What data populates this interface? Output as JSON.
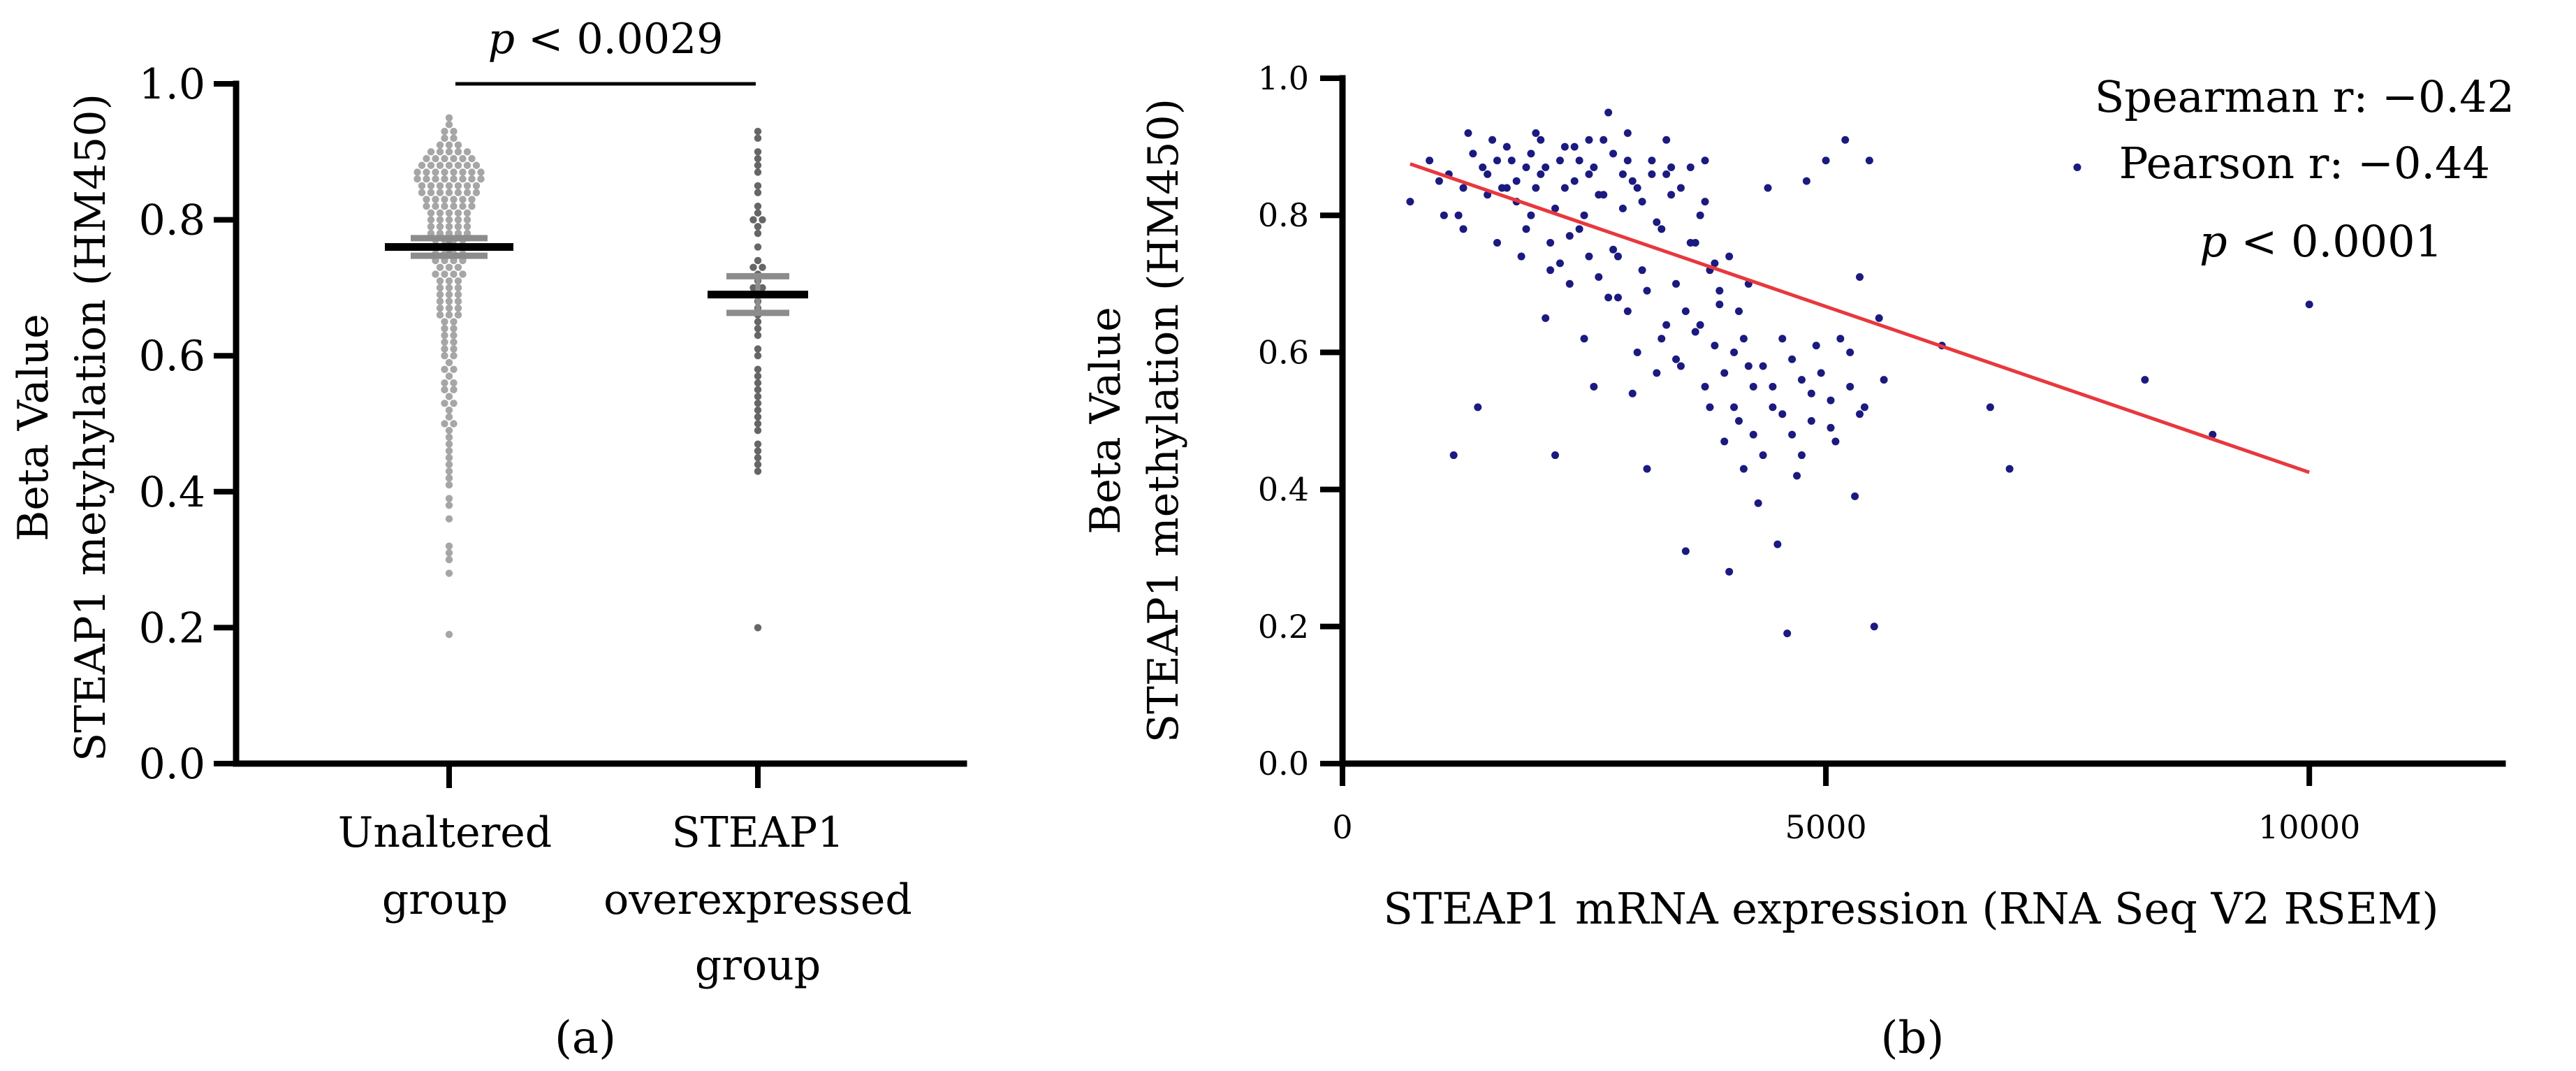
{
  "chart_data": [
    {
      "type": "scatter",
      "panel_label": "(a)",
      "title": "",
      "ylabel_line1": "Beta Value",
      "ylabel_line2": "STEAP1 metyhylation (HM450)",
      "ylim": [
        0,
        1.0
      ],
      "yticks": [
        "0.0",
        "0.2",
        "0.4",
        "0.6",
        "0.8",
        "1.0"
      ],
      "categories": [
        {
          "label_lines": [
            "Unaltered",
            "group"
          ]
        },
        {
          "label_lines": [
            "STEAP1",
            "overexpressed",
            "group"
          ]
        }
      ],
      "significance": {
        "p_symbol": "p",
        "text": " < 0.0029"
      },
      "series": [
        {
          "name": "Unaltered group",
          "color": "#a6a6a6",
          "mean": 0.76,
          "sem_low": 0.747,
          "sem_high": 0.773,
          "values": [
            0.95,
            0.94,
            0.93,
            0.93,
            0.92,
            0.92,
            0.91,
            0.91,
            0.91,
            0.9,
            0.9,
            0.9,
            0.9,
            0.9,
            0.89,
            0.89,
            0.89,
            0.89,
            0.89,
            0.89,
            0.88,
            0.88,
            0.88,
            0.88,
            0.88,
            0.88,
            0.88,
            0.87,
            0.87,
            0.87,
            0.87,
            0.87,
            0.87,
            0.87,
            0.87,
            0.86,
            0.86,
            0.86,
            0.86,
            0.86,
            0.86,
            0.86,
            0.86,
            0.85,
            0.85,
            0.85,
            0.85,
            0.85,
            0.85,
            0.85,
            0.84,
            0.84,
            0.84,
            0.84,
            0.84,
            0.84,
            0.84,
            0.83,
            0.83,
            0.83,
            0.83,
            0.83,
            0.83,
            0.82,
            0.82,
            0.82,
            0.82,
            0.82,
            0.82,
            0.81,
            0.81,
            0.81,
            0.81,
            0.81,
            0.8,
            0.8,
            0.8,
            0.8,
            0.8,
            0.79,
            0.79,
            0.79,
            0.79,
            0.79,
            0.78,
            0.78,
            0.78,
            0.78,
            0.78,
            0.77,
            0.77,
            0.77,
            0.77,
            0.76,
            0.76,
            0.76,
            0.76,
            0.75,
            0.75,
            0.75,
            0.75,
            0.74,
            0.74,
            0.74,
            0.74,
            0.73,
            0.73,
            0.73,
            0.72,
            0.72,
            0.72,
            0.72,
            0.71,
            0.71,
            0.71,
            0.7,
            0.7,
            0.7,
            0.69,
            0.69,
            0.69,
            0.68,
            0.68,
            0.68,
            0.67,
            0.67,
            0.67,
            0.66,
            0.66,
            0.66,
            0.65,
            0.65,
            0.64,
            0.64,
            0.63,
            0.63,
            0.62,
            0.62,
            0.61,
            0.61,
            0.6,
            0.6,
            0.59,
            0.58,
            0.58,
            0.57,
            0.56,
            0.56,
            0.55,
            0.55,
            0.54,
            0.53,
            0.53,
            0.52,
            0.51,
            0.5,
            0.5,
            0.49,
            0.48,
            0.47,
            0.46,
            0.45,
            0.44,
            0.43,
            0.42,
            0.41,
            0.39,
            0.38,
            0.36,
            0.32,
            0.31,
            0.3,
            0.28,
            0.19
          ]
        },
        {
          "name": "STEAP1 overexpressed group",
          "color": "#666666",
          "mean": 0.69,
          "sem_low": 0.663,
          "sem_high": 0.717,
          "values": [
            0.93,
            0.92,
            0.9,
            0.89,
            0.88,
            0.87,
            0.85,
            0.84,
            0.82,
            0.81,
            0.8,
            0.8,
            0.79,
            0.78,
            0.76,
            0.74,
            0.73,
            0.73,
            0.72,
            0.71,
            0.7,
            0.7,
            0.69,
            0.68,
            0.67,
            0.66,
            0.65,
            0.64,
            0.63,
            0.61,
            0.6,
            0.58,
            0.57,
            0.56,
            0.55,
            0.54,
            0.53,
            0.52,
            0.51,
            0.5,
            0.49,
            0.47,
            0.46,
            0.45,
            0.44,
            0.43,
            0.2
          ]
        }
      ]
    },
    {
      "type": "scatter",
      "panel_label": "(b)",
      "title": "",
      "ylabel_line1": "Beta Value",
      "ylabel_line2": "STEAP1 methylation (HM450)",
      "xlabel": "STEAP1 mRNA expression (RNA Seq V2 RSEM)",
      "xlim": [
        0,
        12000
      ],
      "ylim": [
        0,
        1.0
      ],
      "xticks": [
        "0",
        "5000",
        "10000"
      ],
      "yticks": [
        "0.0",
        "0.2",
        "0.4",
        "0.6",
        "0.8",
        "1.0"
      ],
      "point_color": "#1a1a80",
      "fit_line": {
        "color": "#e8383d",
        "x": [
          700,
          10000
        ],
        "y": [
          0.875,
          0.425
        ]
      },
      "annotations": [
        {
          "text": "Spearman r: −0.42"
        },
        {
          "text": "Pearson r: −0.44"
        },
        {
          "p_symbol": "p",
          "text": " < 0.0001"
        }
      ],
      "points": [
        [
          700,
          0.82
        ],
        [
          1000,
          0.85
        ],
        [
          1050,
          0.8
        ],
        [
          1100,
          0.86
        ],
        [
          1150,
          0.45
        ],
        [
          1200,
          0.8
        ],
        [
          1250,
          0.78
        ],
        [
          1300,
          0.92
        ],
        [
          1350,
          0.89
        ],
        [
          1400,
          0.52
        ],
        [
          1450,
          0.87
        ],
        [
          1500,
          0.83
        ],
        [
          1550,
          0.91
        ],
        [
          1600,
          0.76
        ],
        [
          1650,
          0.84
        ],
        [
          1700,
          0.9
        ],
        [
          1750,
          0.88
        ],
        [
          1800,
          0.85
        ],
        [
          1850,
          0.74
        ],
        [
          1900,
          0.87
        ],
        [
          1950,
          0.8
        ],
        [
          2000,
          0.92
        ],
        [
          2050,
          0.86
        ],
        [
          2100,
          0.65
        ],
        [
          2150,
          0.72
        ],
        [
          2200,
          0.45
        ],
        [
          2250,
          0.88
        ],
        [
          2300,
          0.84
        ],
        [
          2350,
          0.7
        ],
        [
          2400,
          0.9
        ],
        [
          2450,
          0.78
        ],
        [
          2500,
          0.62
        ],
        [
          2550,
          0.86
        ],
        [
          2600,
          0.55
        ],
        [
          2650,
          0.83
        ],
        [
          2700,
          0.91
        ],
        [
          2750,
          0.95
        ],
        [
          2800,
          0.75
        ],
        [
          2850,
          0.68
        ],
        [
          2900,
          0.81
        ],
        [
          2950,
          0.88
        ],
        [
          3000,
          0.54
        ],
        [
          3050,
          0.84
        ],
        [
          3100,
          0.72
        ],
        [
          3150,
          0.43
        ],
        [
          3200,
          0.86
        ],
        [
          3250,
          0.79
        ],
        [
          3300,
          0.62
        ],
        [
          3350,
          0.91
        ],
        [
          3400,
          0.83
        ],
        [
          3450,
          0.7
        ],
        [
          3500,
          0.58
        ],
        [
          3550,
          0.31
        ],
        [
          3600,
          0.87
        ],
        [
          3650,
          0.76
        ],
        [
          3700,
          0.64
        ],
        [
          3750,
          0.82
        ],
        [
          3800,
          0.52
        ],
        [
          3850,
          0.73
        ],
        [
          3900,
          0.67
        ],
        [
          3950,
          0.47
        ],
        [
          4000,
          0.28
        ],
        [
          4050,
          0.6
        ],
        [
          4100,
          0.5
        ],
        [
          4150,
          0.43
        ],
        [
          4200,
          0.7
        ],
        [
          4250,
          0.55
        ],
        [
          4300,
          0.38
        ],
        [
          4350,
          0.45
        ],
        [
          4400,
          0.84
        ],
        [
          4450,
          0.52
        ],
        [
          4500,
          0.32
        ],
        [
          4550,
          0.62
        ],
        [
          4600,
          0.19
        ],
        [
          4650,
          0.48
        ],
        [
          4700,
          0.42
        ],
        [
          4750,
          0.56
        ],
        [
          4800,
          0.85
        ],
        [
          4850,
          0.5
        ],
        [
          4900,
          0.61
        ],
        [
          5000,
          0.88
        ],
        [
          5050,
          0.53
        ],
        [
          5100,
          0.47
        ],
        [
          5200,
          0.91
        ],
        [
          5250,
          0.6
        ],
        [
          5300,
          0.39
        ],
        [
          5350,
          0.71
        ],
        [
          5400,
          0.52
        ],
        [
          5450,
          0.88
        ],
        [
          5500,
          0.2
        ],
        [
          5550,
          0.65
        ],
        [
          5600,
          0.56
        ],
        [
          6200,
          0.61
        ],
        [
          6700,
          0.52
        ],
        [
          6900,
          0.43
        ],
        [
          7600,
          0.87
        ],
        [
          8300,
          0.56
        ],
        [
          9000,
          0.48
        ],
        [
          10000,
          0.67
        ],
        [
          900,
          0.88
        ],
        [
          1250,
          0.84
        ],
        [
          1600,
          0.88
        ],
        [
          1800,
          0.82
        ],
        [
          2000,
          0.84
        ],
        [
          2100,
          0.87
        ],
        [
          2200,
          0.81
        ],
        [
          2300,
          0.9
        ],
        [
          2400,
          0.85
        ],
        [
          2450,
          0.88
        ],
        [
          2500,
          0.8
        ],
        [
          2600,
          0.87
        ],
        [
          2700,
          0.83
        ],
        [
          2800,
          0.89
        ],
        [
          2900,
          0.86
        ],
        [
          3000,
          0.85
        ],
        [
          3100,
          0.82
        ],
        [
          3200,
          0.88
        ],
        [
          3300,
          0.78
        ],
        [
          3400,
          0.87
        ],
        [
          3500,
          0.84
        ],
        [
          3600,
          0.76
        ],
        [
          3700,
          0.8
        ],
        [
          3800,
          0.72
        ],
        [
          3900,
          0.69
        ],
        [
          4000,
          0.74
        ],
        [
          4100,
          0.66
        ],
        [
          4200,
          0.58
        ],
        [
          1500,
          0.86
        ],
        [
          1700,
          0.84
        ],
        [
          1900,
          0.78
        ],
        [
          2150,
          0.76
        ],
        [
          2250,
          0.73
        ],
        [
          2350,
          0.77
        ],
        [
          2550,
          0.74
        ],
        [
          2650,
          0.71
        ],
        [
          2750,
          0.68
        ],
        [
          2850,
          0.74
        ],
        [
          2950,
          0.66
        ],
        [
          3050,
          0.6
        ],
        [
          3150,
          0.69
        ],
        [
          3250,
          0.57
        ],
        [
          3350,
          0.64
        ],
        [
          3450,
          0.59
        ],
        [
          3550,
          0.66
        ],
        [
          3650,
          0.63
        ],
        [
          3750,
          0.55
        ],
        [
          3850,
          0.61
        ],
        [
          3950,
          0.57
        ],
        [
          4050,
          0.52
        ],
        [
          4150,
          0.62
        ],
        [
          4250,
          0.48
        ],
        [
          4350,
          0.58
        ],
        [
          4450,
          0.55
        ],
        [
          4550,
          0.51
        ],
        [
          4650,
          0.59
        ],
        [
          4750,
          0.45
        ],
        [
          4850,
          0.54
        ],
        [
          4950,
          0.57
        ],
        [
          5050,
          0.49
        ],
        [
          5150,
          0.62
        ],
        [
          5250,
          0.55
        ],
        [
          5350,
          0.51
        ],
        [
          1950,
          0.89
        ],
        [
          2050,
          0.91
        ],
        [
          2550,
          0.91
        ],
        [
          2950,
          0.92
        ],
        [
          3350,
          0.86
        ],
        [
          3750,
          0.88
        ]
      ]
    }
  ]
}
